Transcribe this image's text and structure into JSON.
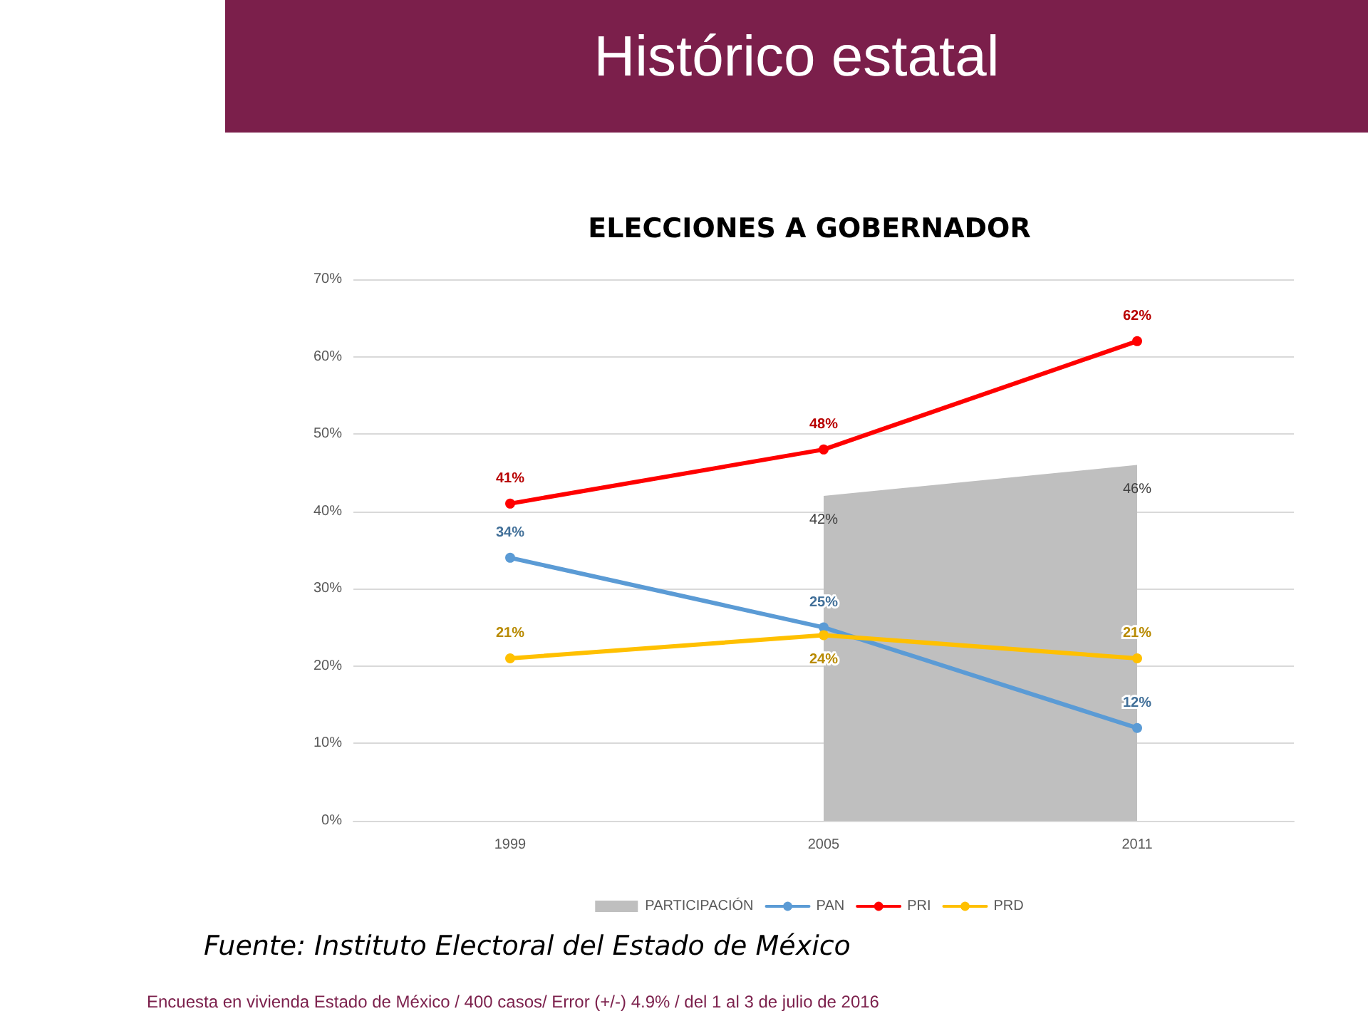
{
  "chart_data": {
    "type": "line",
    "title": "Histórico estatal",
    "subtitle": "ELECCIONES A GOBERNADOR",
    "categories": [
      "1999",
      "2005",
      "2011"
    ],
    "series": [
      {
        "name": "PARTICIPACIÓN",
        "type": "area",
        "marker": "none",
        "color": "#bfbfbf",
        "values": [
          null,
          42,
          46
        ],
        "value_labels": [
          null,
          "42%",
          "46%"
        ]
      },
      {
        "name": "PAN",
        "color": "#5b9bd5",
        "values": [
          34,
          25,
          12
        ],
        "value_labels": [
          "34%",
          "25%",
          "12%"
        ]
      },
      {
        "name": "PRI",
        "color": "#ff0000",
        "values": [
          41,
          48,
          62
        ],
        "value_labels": [
          "41%",
          "48%",
          "62%"
        ]
      },
      {
        "name": "PRD",
        "color": "#ffc000",
        "values": [
          21,
          24,
          21
        ],
        "value_labels": [
          "21%",
          "24%",
          "21%"
        ]
      }
    ],
    "ylim": [
      0,
      70
    ],
    "yticks": [
      {
        "value": 0,
        "label": "0%"
      },
      {
        "value": 10,
        "label": "10%"
      },
      {
        "value": 20,
        "label": "20%"
      },
      {
        "value": 30,
        "label": "30%"
      },
      {
        "value": 40,
        "label": "40%"
      },
      {
        "value": 50,
        "label": "50%"
      },
      {
        "value": 60,
        "label": "60%"
      },
      {
        "value": 70,
        "label": "70%"
      }
    ],
    "grid": "y",
    "legend": "bottom",
    "marker": "circle",
    "line_style": "solid",
    "annotations": [
      "Fuente: Instituto Electoral del Estado de México",
      "Encuesta en vivienda Estado de México / 400 casos/ Error (+/-) 4.9%  / del 1 al 3 de julio de 2016"
    ]
  }
}
